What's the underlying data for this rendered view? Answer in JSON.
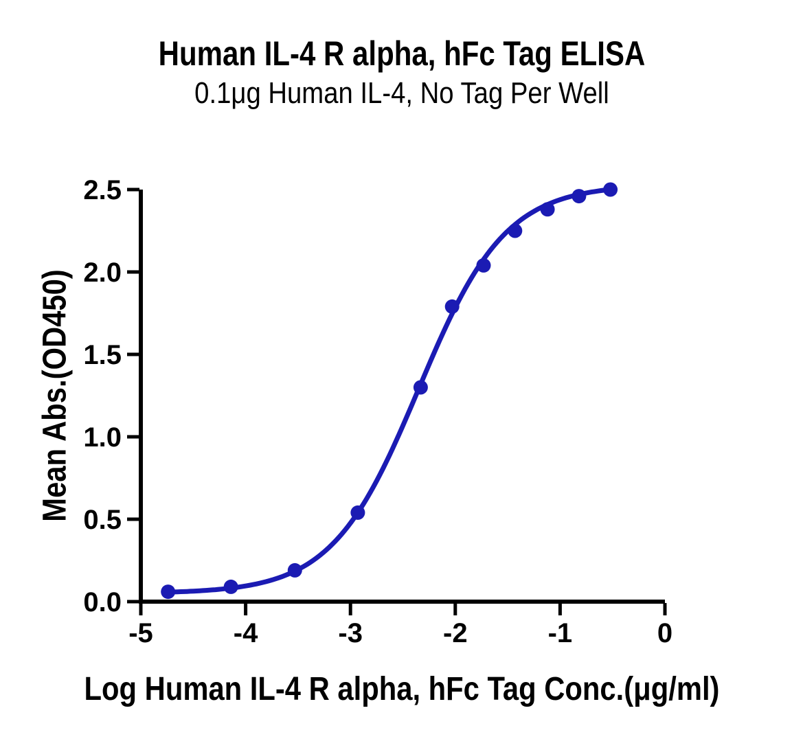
{
  "chart_data": {
    "type": "scatter",
    "title": "Human IL-4 R alpha, hFc Tag ELISA",
    "subtitle": "0.1μg Human IL-4, No Tag Per Well",
    "xlabel": "Log Human IL-4 R alpha, hFc Tag Conc.(μg/ml)",
    "ylabel": "Mean Abs.(OD450)",
    "xlim": [
      -5,
      0
    ],
    "ylim": [
      0,
      2.5
    ],
    "x_ticks": [
      -5,
      -4,
      -3,
      -2,
      -1,
      0
    ],
    "x_tick_labels": [
      "-5",
      "-4",
      "-3",
      "-2",
      "-1",
      "0"
    ],
    "y_ticks": [
      0,
      0.5,
      1,
      1.5,
      2,
      2.5
    ],
    "y_tick_labels": [
      "0.0",
      "0.5",
      "1.0",
      "1.5",
      "2.0",
      "2.5"
    ],
    "grid": false,
    "legend": "none",
    "background": "#ffffff",
    "axis_color": "#000000",
    "series": [
      {
        "name": "Human IL-4 R alpha, hFc Tag",
        "color": "#1B1BB3",
        "marker": "circle",
        "points": [
          {
            "x": -4.74,
            "y": 0.06
          },
          {
            "x": -4.14,
            "y": 0.09
          },
          {
            "x": -3.53,
            "y": 0.19
          },
          {
            "x": -2.93,
            "y": 0.54
          },
          {
            "x": -2.33,
            "y": 1.3
          },
          {
            "x": -2.03,
            "y": 1.79
          },
          {
            "x": -1.73,
            "y": 2.04
          },
          {
            "x": -1.43,
            "y": 2.25
          },
          {
            "x": -1.12,
            "y": 2.38
          },
          {
            "x": -0.82,
            "y": 2.46
          },
          {
            "x": -0.52,
            "y": 2.5
          }
        ],
        "fit": {
          "model": "4PL",
          "bottom": 0.05,
          "top": 2.53,
          "log_ec50": -2.35,
          "hill": 1.05
        }
      }
    ]
  }
}
